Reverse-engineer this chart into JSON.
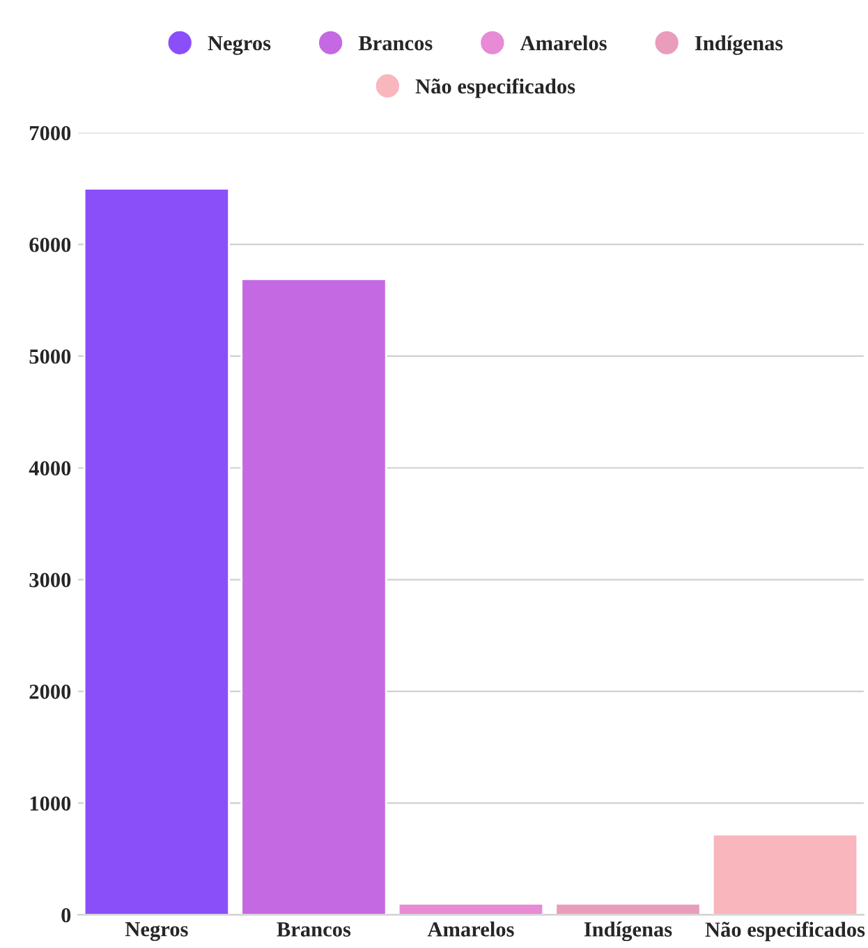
{
  "chart_data": {
    "type": "bar",
    "categories": [
      "Negros",
      "Brancos",
      "Amarelos",
      "Indígenas",
      "Não especificados"
    ],
    "series": [
      {
        "name": "Negros",
        "color": "#8b4ffa",
        "values": [
          6500,
          null,
          null,
          null,
          null
        ]
      },
      {
        "name": "Brancos",
        "color": "#c569e3",
        "values": [
          null,
          5690,
          null,
          null,
          null
        ]
      },
      {
        "name": "Amarelos",
        "color": "#e88ad6",
        "values": [
          null,
          null,
          100,
          null,
          null
        ]
      },
      {
        "name": "Indígenas",
        "color": "#ea9cbb",
        "values": [
          null,
          null,
          null,
          100,
          null
        ]
      },
      {
        "name": "Não especificados",
        "color": "#f9b6bc",
        "values": [
          null,
          null,
          null,
          null,
          720
        ]
      }
    ],
    "ylim": [
      0,
      7000
    ],
    "yticks": [
      0,
      1000,
      2000,
      3000,
      4000,
      5000,
      6000,
      7000
    ],
    "grid": "y",
    "legend": "top"
  }
}
